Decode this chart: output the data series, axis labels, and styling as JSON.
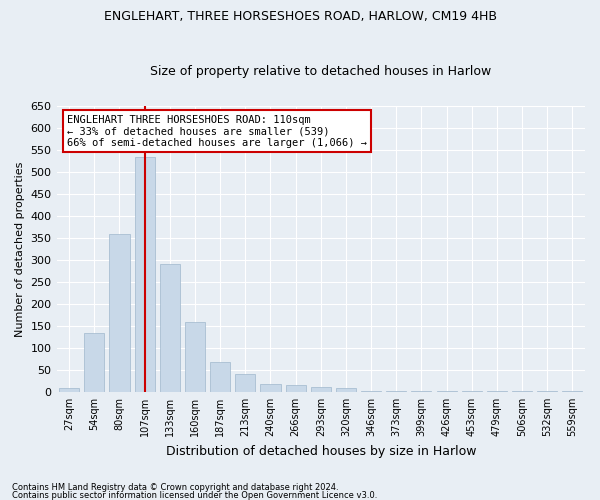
{
  "title1": "ENGLEHART, THREE HORSESHOES ROAD, HARLOW, CM19 4HB",
  "title2": "Size of property relative to detached houses in Harlow",
  "xlabel": "Distribution of detached houses by size in Harlow",
  "ylabel": "Number of detached properties",
  "categories": [
    "27sqm",
    "54sqm",
    "80sqm",
    "107sqm",
    "133sqm",
    "160sqm",
    "187sqm",
    "213sqm",
    "240sqm",
    "266sqm",
    "293sqm",
    "320sqm",
    "346sqm",
    "373sqm",
    "399sqm",
    "426sqm",
    "453sqm",
    "479sqm",
    "506sqm",
    "532sqm",
    "559sqm"
  ],
  "values": [
    10,
    135,
    360,
    535,
    290,
    158,
    67,
    40,
    18,
    15,
    12,
    8,
    3,
    2,
    2,
    3,
    1,
    1,
    3,
    1,
    3
  ],
  "bar_color": "#c8d8e8",
  "bar_edge_color": "#a0b8cc",
  "highlight_index": 3,
  "highlight_line_color": "#cc0000",
  "annotation_line1": "ENGLEHART THREE HORSESHOES ROAD: 110sqm",
  "annotation_line2": "← 33% of detached houses are smaller (539)",
  "annotation_line3": "66% of semi-detached houses are larger (1,066) →",
  "annotation_box_color": "#ffffff",
  "annotation_box_edge_color": "#cc0000",
  "ylim": [
    0,
    650
  ],
  "yticks": [
    0,
    50,
    100,
    150,
    200,
    250,
    300,
    350,
    400,
    450,
    500,
    550,
    600,
    650
  ],
  "background_color": "#e8eef4",
  "grid_color": "#ffffff",
  "footer1": "Contains HM Land Registry data © Crown copyright and database right 2024.",
  "footer2": "Contains public sector information licensed under the Open Government Licence v3.0."
}
